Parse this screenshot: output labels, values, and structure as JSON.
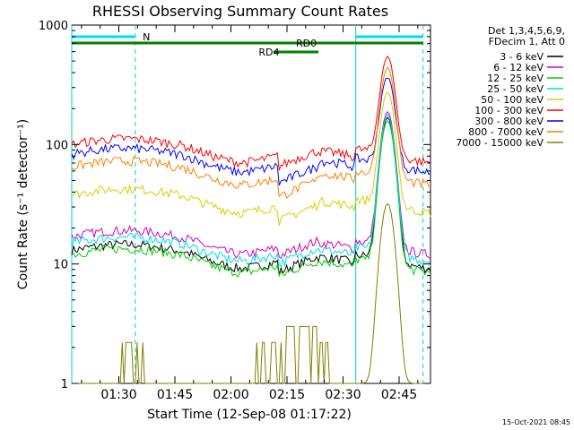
{
  "chart_data": {
    "type": "line",
    "title": "RHESSI Observing Summary Count Rates",
    "xlabel": "Start Time (12-Sep-08 01:17:22)",
    "ylabel": "Count Rate (s⁻¹ detector⁻¹)",
    "yscale": "log",
    "ylim": [
      1,
      1000
    ],
    "xlim_minutes_after_start": [
      0,
      96
    ],
    "x_ticks": [
      {
        "label": "01:30",
        "minute": 12.6
      },
      {
        "label": "01:45",
        "minute": 27.6
      },
      {
        "label": "02:00",
        "minute": 42.6
      },
      {
        "label": "02:15",
        "minute": 57.6
      },
      {
        "label": "02:30",
        "minute": 72.6
      },
      {
        "label": "02:45",
        "minute": 87.6
      }
    ],
    "y_ticks": [
      {
        "label": "1",
        "value": 1
      },
      {
        "label": "10",
        "value": 10
      },
      {
        "label": "100",
        "value": 100
      },
      {
        "label": "1000",
        "value": 1000
      }
    ],
    "legend_header": [
      "Det 1,3,4,5,6,9,",
      "FDecim 1, Att 0"
    ],
    "series": [
      {
        "name": "3 - 6 keV",
        "color": "#000000",
        "base": 13,
        "peak": 170,
        "ds": 0.55
      },
      {
        "name": "6 - 12 keV",
        "color": "#d000d0",
        "base": 17,
        "peak": 190,
        "ds": 0.45
      },
      {
        "name": "12 - 25 keV",
        "color": "#00d000",
        "base": 12,
        "peak": 160,
        "ds": 0.55
      },
      {
        "name": "25 - 50 keV",
        "color": "#00e0e0",
        "base": 15,
        "peak": 180,
        "ds": 0.5
      },
      {
        "name": "50 - 100 keV",
        "color": "#d8d000",
        "base": 38,
        "peak": 280,
        "ds": 0.75
      },
      {
        "name": "100 - 300 keV",
        "color": "#ff0000",
        "base": 100,
        "peak": 560,
        "ds": 0.55
      },
      {
        "name": "300 - 800 keV",
        "color": "#0000ff",
        "base": 83,
        "peak": 380,
        "ds": 0.85
      },
      {
        "name": "800 - 7000 keV",
        "color": "#ff8000",
        "base": 65,
        "peak": 450,
        "ds": 0.9
      },
      {
        "name": "7000 - 15000 keV",
        "color": "#808000",
        "base": 1,
        "peak": 32,
        "ds": 1.0
      }
    ],
    "flags": [
      {
        "label": "N",
        "color": "#00e0e0",
        "ranges": [
          [
            0,
            17
          ],
          [
            76,
            94
          ]
        ]
      },
      {
        "label": "RD0",
        "color": "#008000",
        "ranges": [
          [
            0,
            66
          ],
          [
            66,
            94
          ]
        ]
      },
      {
        "label": "RD4",
        "color": "#008000",
        "ranges": [
          [
            54,
            66
          ]
        ]
      }
    ],
    "vertical_markers_minutes": [
      0,
      17,
      76,
      94
    ]
  },
  "footer": {
    "timestamp": "15-Oct-2021 08:45"
  }
}
